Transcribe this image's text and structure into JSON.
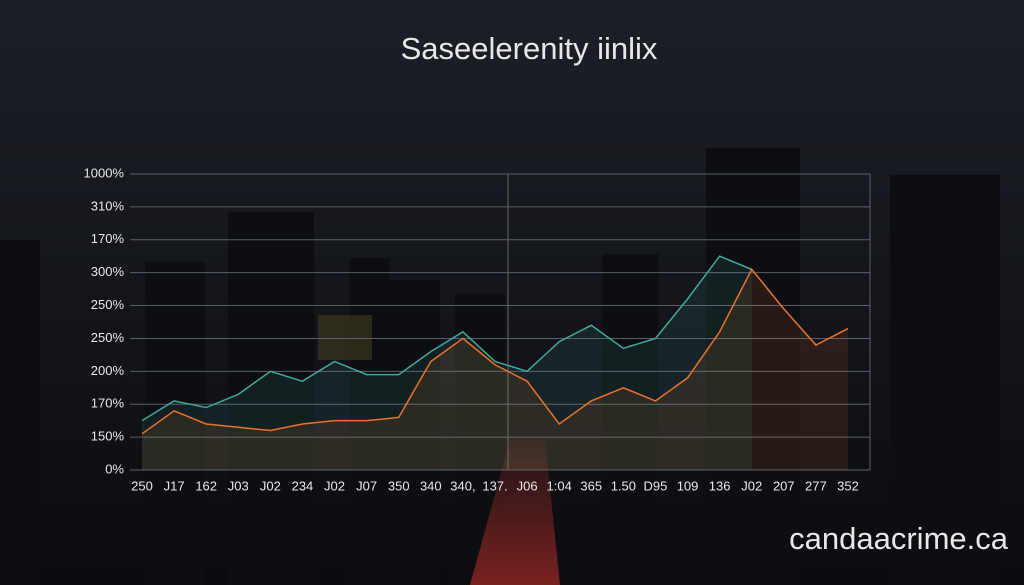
{
  "chart_data": {
    "type": "line",
    "title": "Saseelerenity iinlix",
    "watermark": "candaacrime.ca",
    "categories": [
      "250",
      "J17",
      "162",
      "J03",
      "J02",
      "234",
      "J02",
      "J07",
      "350",
      "340",
      "340,",
      "137.",
      "J06",
      "1:04",
      "365",
      "1.50",
      "D95",
      "109",
      "136",
      "J02",
      "207",
      "277",
      "352"
    ],
    "y_categories": [
      "0%",
      "150%",
      "170%",
      "200%",
      "250%",
      "250%",
      "300%",
      "170%",
      "310%",
      "1000%"
    ],
    "ylim": [
      0,
      9
    ],
    "grid": true,
    "series": [
      {
        "name": "teal",
        "color": "#3fa89a",
        "values": [
          1.5,
          2.1,
          1.9,
          2.3,
          3.0,
          2.7,
          3.3,
          2.9,
          2.9,
          3.6,
          4.2,
          3.3,
          3.0,
          3.9,
          4.4,
          3.7,
          4.0,
          5.2,
          6.5,
          6.1,
          null,
          null,
          null
        ]
      },
      {
        "name": "orange",
        "color": "#e8732a",
        "values": [
          1.1,
          1.8,
          1.4,
          1.3,
          1.2,
          1.4,
          1.5,
          1.5,
          1.6,
          3.3,
          4.0,
          3.2,
          2.7,
          1.4,
          2.1,
          2.5,
          2.1,
          2.8,
          4.2,
          6.1,
          4.9,
          3.8,
          4.3
        ]
      }
    ]
  }
}
